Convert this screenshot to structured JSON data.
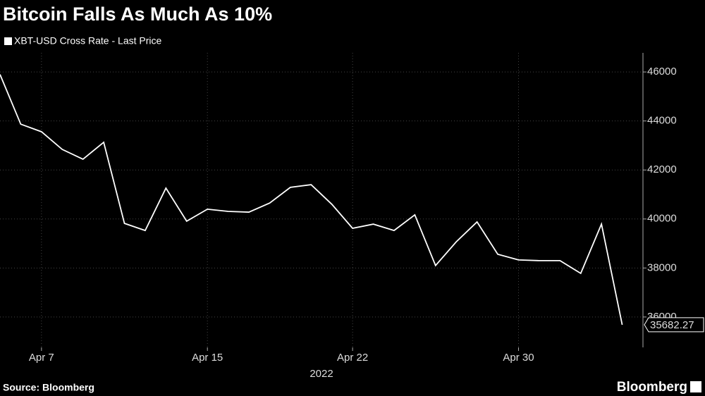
{
  "chart_data": {
    "type": "line",
    "title": "Bitcoin Falls As Much As 10%",
    "x_label": "2022",
    "source": "Source: Bloomberg",
    "brand": "Bloomberg",
    "x": [
      "2022-04-05",
      "2022-04-06",
      "2022-04-07",
      "2022-04-08",
      "2022-04-09",
      "2022-04-10",
      "2022-04-11",
      "2022-04-12",
      "2022-04-13",
      "2022-04-14",
      "2022-04-15",
      "2022-04-16",
      "2022-04-17",
      "2022-04-18",
      "2022-04-19",
      "2022-04-20",
      "2022-04-21",
      "2022-04-22",
      "2022-04-23",
      "2022-04-24",
      "2022-04-25",
      "2022-04-26",
      "2022-04-27",
      "2022-04-28",
      "2022-04-29",
      "2022-04-30",
      "2022-05-01",
      "2022-05-02",
      "2022-05-03",
      "2022-05-04",
      "2022-05-05"
    ],
    "series": [
      {
        "name": "XBT-USD Cross Rate - Last Price",
        "color": "#ffffff",
        "values": [
          45900,
          43870,
          43560,
          42840,
          42440,
          43130,
          39820,
          39530,
          41260,
          39910,
          40400,
          40310,
          40280,
          40650,
          41290,
          41400,
          40600,
          39620,
          39790,
          39530,
          40170,
          38100,
          39070,
          39880,
          38560,
          38330,
          38300,
          38300,
          37780,
          39790,
          35682.27
        ]
      }
    ],
    "xlim": [
      "2022-04-05",
      "2022-05-06"
    ],
    "xticks": [
      {
        "value": "2022-04-07",
        "label": "Apr 7"
      },
      {
        "value": "2022-04-15",
        "label": "Apr 15"
      },
      {
        "value": "2022-04-22",
        "label": "Apr 22"
      },
      {
        "value": "2022-04-30",
        "label": "Apr 30"
      }
    ],
    "ylim": [
      34760,
      46780
    ],
    "yticks": [
      36000,
      38000,
      40000,
      42000,
      44000,
      46000
    ],
    "grid": true
  }
}
